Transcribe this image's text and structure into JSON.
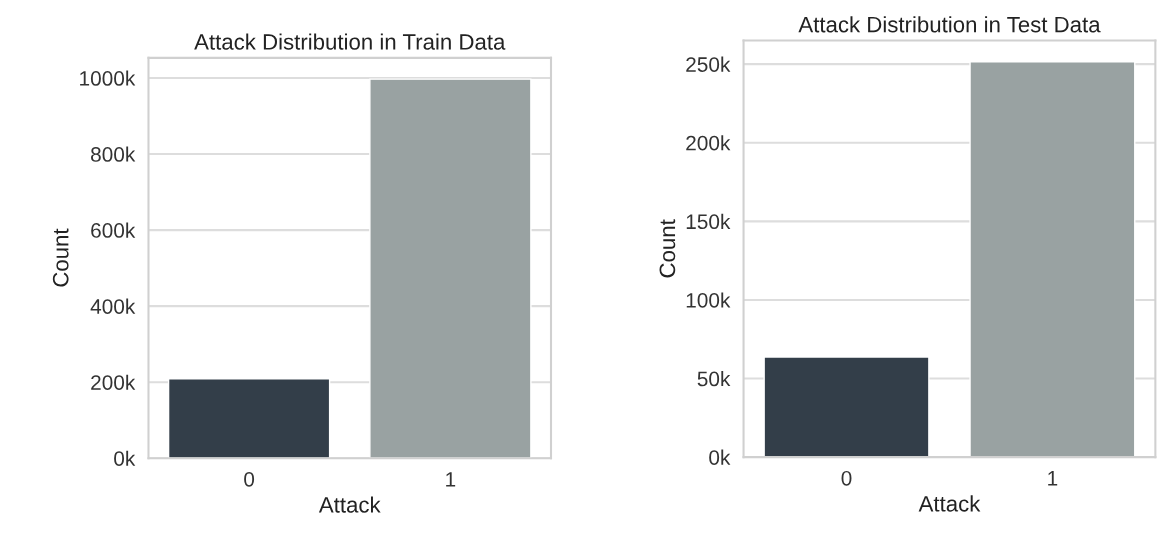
{
  "chart_data": [
    {
      "type": "bar",
      "title": "Attack Distribution in Train Data",
      "xlabel": "Attack",
      "ylabel": "Count",
      "categories": [
        "0",
        "1"
      ],
      "values": [
        209000,
        997000
      ],
      "colors": [
        "#2f3e4d",
        "#97a3a4"
      ],
      "ylim": [
        0,
        1053000
      ],
      "yticks": [
        {
          "value": 0,
          "label": "0k"
        },
        {
          "value": 200000,
          "label": "200k"
        },
        {
          "value": 400000,
          "label": "400k"
        },
        {
          "value": 600000,
          "label": "600k"
        },
        {
          "value": 800000,
          "label": "800k"
        },
        {
          "value": 1000000,
          "label": "1000k"
        }
      ],
      "grid": "y"
    },
    {
      "type": "bar",
      "title": "Attack Distribution in Test Data",
      "xlabel": "Attack",
      "ylabel": "Count",
      "categories": [
        "0",
        "1"
      ],
      "values": [
        63700,
        251500
      ],
      "colors": [
        "#2f3e4d",
        "#97a3a4"
      ],
      "ylim": [
        0,
        265000
      ],
      "yticks": [
        {
          "value": 0,
          "label": "0k"
        },
        {
          "value": 50000,
          "label": "50k"
        },
        {
          "value": 100000,
          "label": "100k"
        },
        {
          "value": 150000,
          "label": "150k"
        },
        {
          "value": 200000,
          "label": "200k"
        },
        {
          "value": 250000,
          "label": "250k"
        }
      ],
      "grid": "y"
    }
  ]
}
